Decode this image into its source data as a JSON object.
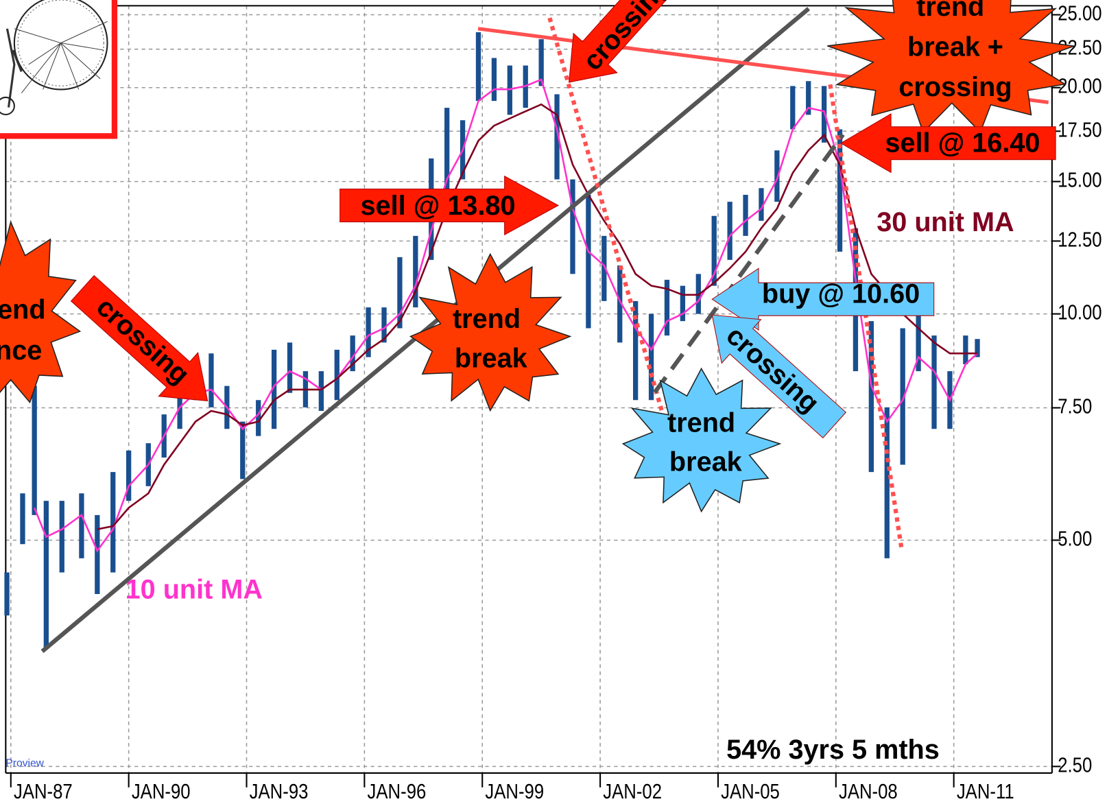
{
  "chart_data": {
    "type": "hilo",
    "ylog": true,
    "grid": true,
    "xlim": [
      1986.87,
      2013.5
    ],
    "ylim": [
      2.45,
      25.7
    ],
    "xticks": [
      {
        "value": 1987,
        "label": "JAN-87"
      },
      {
        "value": 1990,
        "label": "JAN-90"
      },
      {
        "value": 1993,
        "label": "JAN-93"
      },
      {
        "value": 1996,
        "label": "JAN-96"
      },
      {
        "value": 1999,
        "label": "JAN-99"
      },
      {
        "value": 2002,
        "label": "JAN-02"
      },
      {
        "value": 2005,
        "label": "JAN-05"
      },
      {
        "value": 2008,
        "label": "JAN-08"
      },
      {
        "value": 2011,
        "label": "JAN-11"
      }
    ],
    "yticks": [
      {
        "value": 2.5,
        "label": "2.50"
      },
      {
        "value": 5,
        "label": "5.00"
      },
      {
        "value": 7.5,
        "label": "7.50"
      },
      {
        "value": 10,
        "label": "10.00"
      },
      {
        "value": 12.5,
        "label": "12.50"
      },
      {
        "value": 15,
        "label": "15.00"
      },
      {
        "value": 17.5,
        "label": "17.50"
      },
      {
        "value": 20,
        "label": "20.00"
      },
      {
        "value": 22.5,
        "label": "22.50"
      },
      {
        "value": 25,
        "label": "25.00"
      }
    ],
    "x": [
      1986.9,
      1987.3,
      1987.6,
      1987.9,
      1988.3,
      1988.8,
      1989.2,
      1989.6,
      1990.0,
      1990.5,
      1990.9,
      1991.3,
      1991.7,
      1992.1,
      1992.5,
      1992.9,
      1993.3,
      1993.7,
      1994.1,
      1994.5,
      1994.9,
      1995.3,
      1995.7,
      1996.1,
      1996.5,
      1996.9,
      1997.3,
      1997.7,
      1998.1,
      1998.5,
      1998.9,
      1999.3,
      1999.7,
      2000.1,
      2000.5,
      2000.9,
      2001.3,
      2001.7,
      2002.1,
      2002.5,
      2002.9,
      2003.3,
      2003.7,
      2004.1,
      2004.5,
      2004.9,
      2005.3,
      2005.7,
      2006.1,
      2006.5,
      2006.9,
      2007.3,
      2007.7,
      2008.1,
      2008.5,
      2008.9,
      2009.3,
      2009.7,
      2010.1,
      2010.5,
      2010.9,
      2011.3,
      2011.6
    ],
    "color": "#1a4f8f",
    "high": [
      4.53,
      5.77,
      8.02,
      5.64,
      5.64,
      5.77,
      5.4,
      6.16,
      6.58,
      6.73,
      7.35,
      8.2,
      8.57,
      8.86,
      8.02,
      7.19,
      7.68,
      8.96,
      9.16,
      8.39,
      8.39,
      8.96,
      9.36,
      10.2,
      10.2,
      11.9,
      12.7,
      16.1,
      18.8,
      18.1,
      23.7,
      21.9,
      21.4,
      21.4,
      23.2,
      19.6,
      15.1,
      14.4,
      12.7,
      11.6,
      10.4,
      10.0,
      11.1,
      10.9,
      11.3,
      13.5,
      14.1,
      14.4,
      14.7,
      16.5,
      20.1,
      20.4,
      20.1,
      17.6,
      13.0,
      9.78,
      7.51,
      9.57,
      10.2,
      9.36,
      8.39,
      9.36,
      9.26
    ],
    "low": [
      3.97,
      4.94,
      5.4,
      3.59,
      4.53,
      4.73,
      4.24,
      4.53,
      5.64,
      5.9,
      6.44,
      7.03,
      7.68,
      7.51,
      7.03,
      6.03,
      6.88,
      7.03,
      7.85,
      7.51,
      7.43,
      7.68,
      8.39,
      8.76,
      9.16,
      9.57,
      10.2,
      11.8,
      14.1,
      15.1,
      19.2,
      19.2,
      18.4,
      18.8,
      20.1,
      15.1,
      11.3,
      9.57,
      10.4,
      9.16,
      7.68,
      7.68,
      9.36,
      9.78,
      10.0,
      10.9,
      11.8,
      12.7,
      13.3,
      14.1,
      17.6,
      18.4,
      16.9,
      12.1,
      8.39,
      6.16,
      4.73,
      6.3,
      8.39,
      7.03,
      7.03,
      8.57,
      8.76
    ],
    "series": [
      {
        "name": "10 unit MA",
        "color": "#ff33cc",
        "values": [
          null,
          null,
          5.52,
          5.05,
          5.17,
          5.4,
          4.84,
          5.17,
          5.9,
          6.3,
          6.88,
          7.51,
          7.85,
          7.93,
          7.51,
          7.03,
          7.35,
          8.02,
          8.39,
          8.2,
          7.93,
          8.2,
          8.76,
          9.36,
          9.57,
          10.0,
          10.9,
          12.9,
          15.1,
          16.5,
          19.2,
          19.9,
          19.9,
          20.1,
          20.5,
          17.6,
          13.8,
          12.1,
          11.6,
          10.4,
          9.57,
          8.96,
          9.78,
          10.0,
          10.4,
          11.3,
          12.7,
          13.3,
          13.8,
          15.1,
          17.6,
          18.8,
          18.6,
          15.8,
          11.1,
          8.02,
          7.19,
          7.68,
          8.76,
          8.39,
          7.68,
          8.57,
          8.86
        ]
      },
      {
        "name": "30 unit MA",
        "color": "#800020",
        "values": [
          null,
          null,
          null,
          null,
          null,
          null,
          5.17,
          5.22,
          5.52,
          5.77,
          6.3,
          6.73,
          7.19,
          7.43,
          7.35,
          7.11,
          7.19,
          7.68,
          7.93,
          7.93,
          7.93,
          8.2,
          8.57,
          8.96,
          9.26,
          9.78,
          10.7,
          12.1,
          13.8,
          15.4,
          17.0,
          17.8,
          18.2,
          18.6,
          19.0,
          18.4,
          15.8,
          14.4,
          13.3,
          12.4,
          11.3,
          10.9,
          10.8,
          10.6,
          10.6,
          11.0,
          11.5,
          12.1,
          13.0,
          13.8,
          15.4,
          16.5,
          17.3,
          15.8,
          13.0,
          11.3,
          10.7,
          10.0,
          9.57,
          9.16,
          8.86,
          8.86,
          8.86
        ]
      }
    ],
    "annotations": [
      [
        "end",
        "nce"
      ],
      [
        "crossing"
      ],
      [
        "crossing"
      ],
      [
        "trend",
        "break +",
        "crossing"
      ],
      [
        "sell @ 16.40"
      ],
      [
        "sell @ 13.80"
      ],
      [
        "buy @ 10.60"
      ],
      [
        "crossing"
      ],
      [
        "trend",
        "break"
      ],
      [
        "trend",
        "break"
      ],
      [
        "54% 3yrs 5 mths"
      ],
      [
        "Proview"
      ]
    ]
  }
}
